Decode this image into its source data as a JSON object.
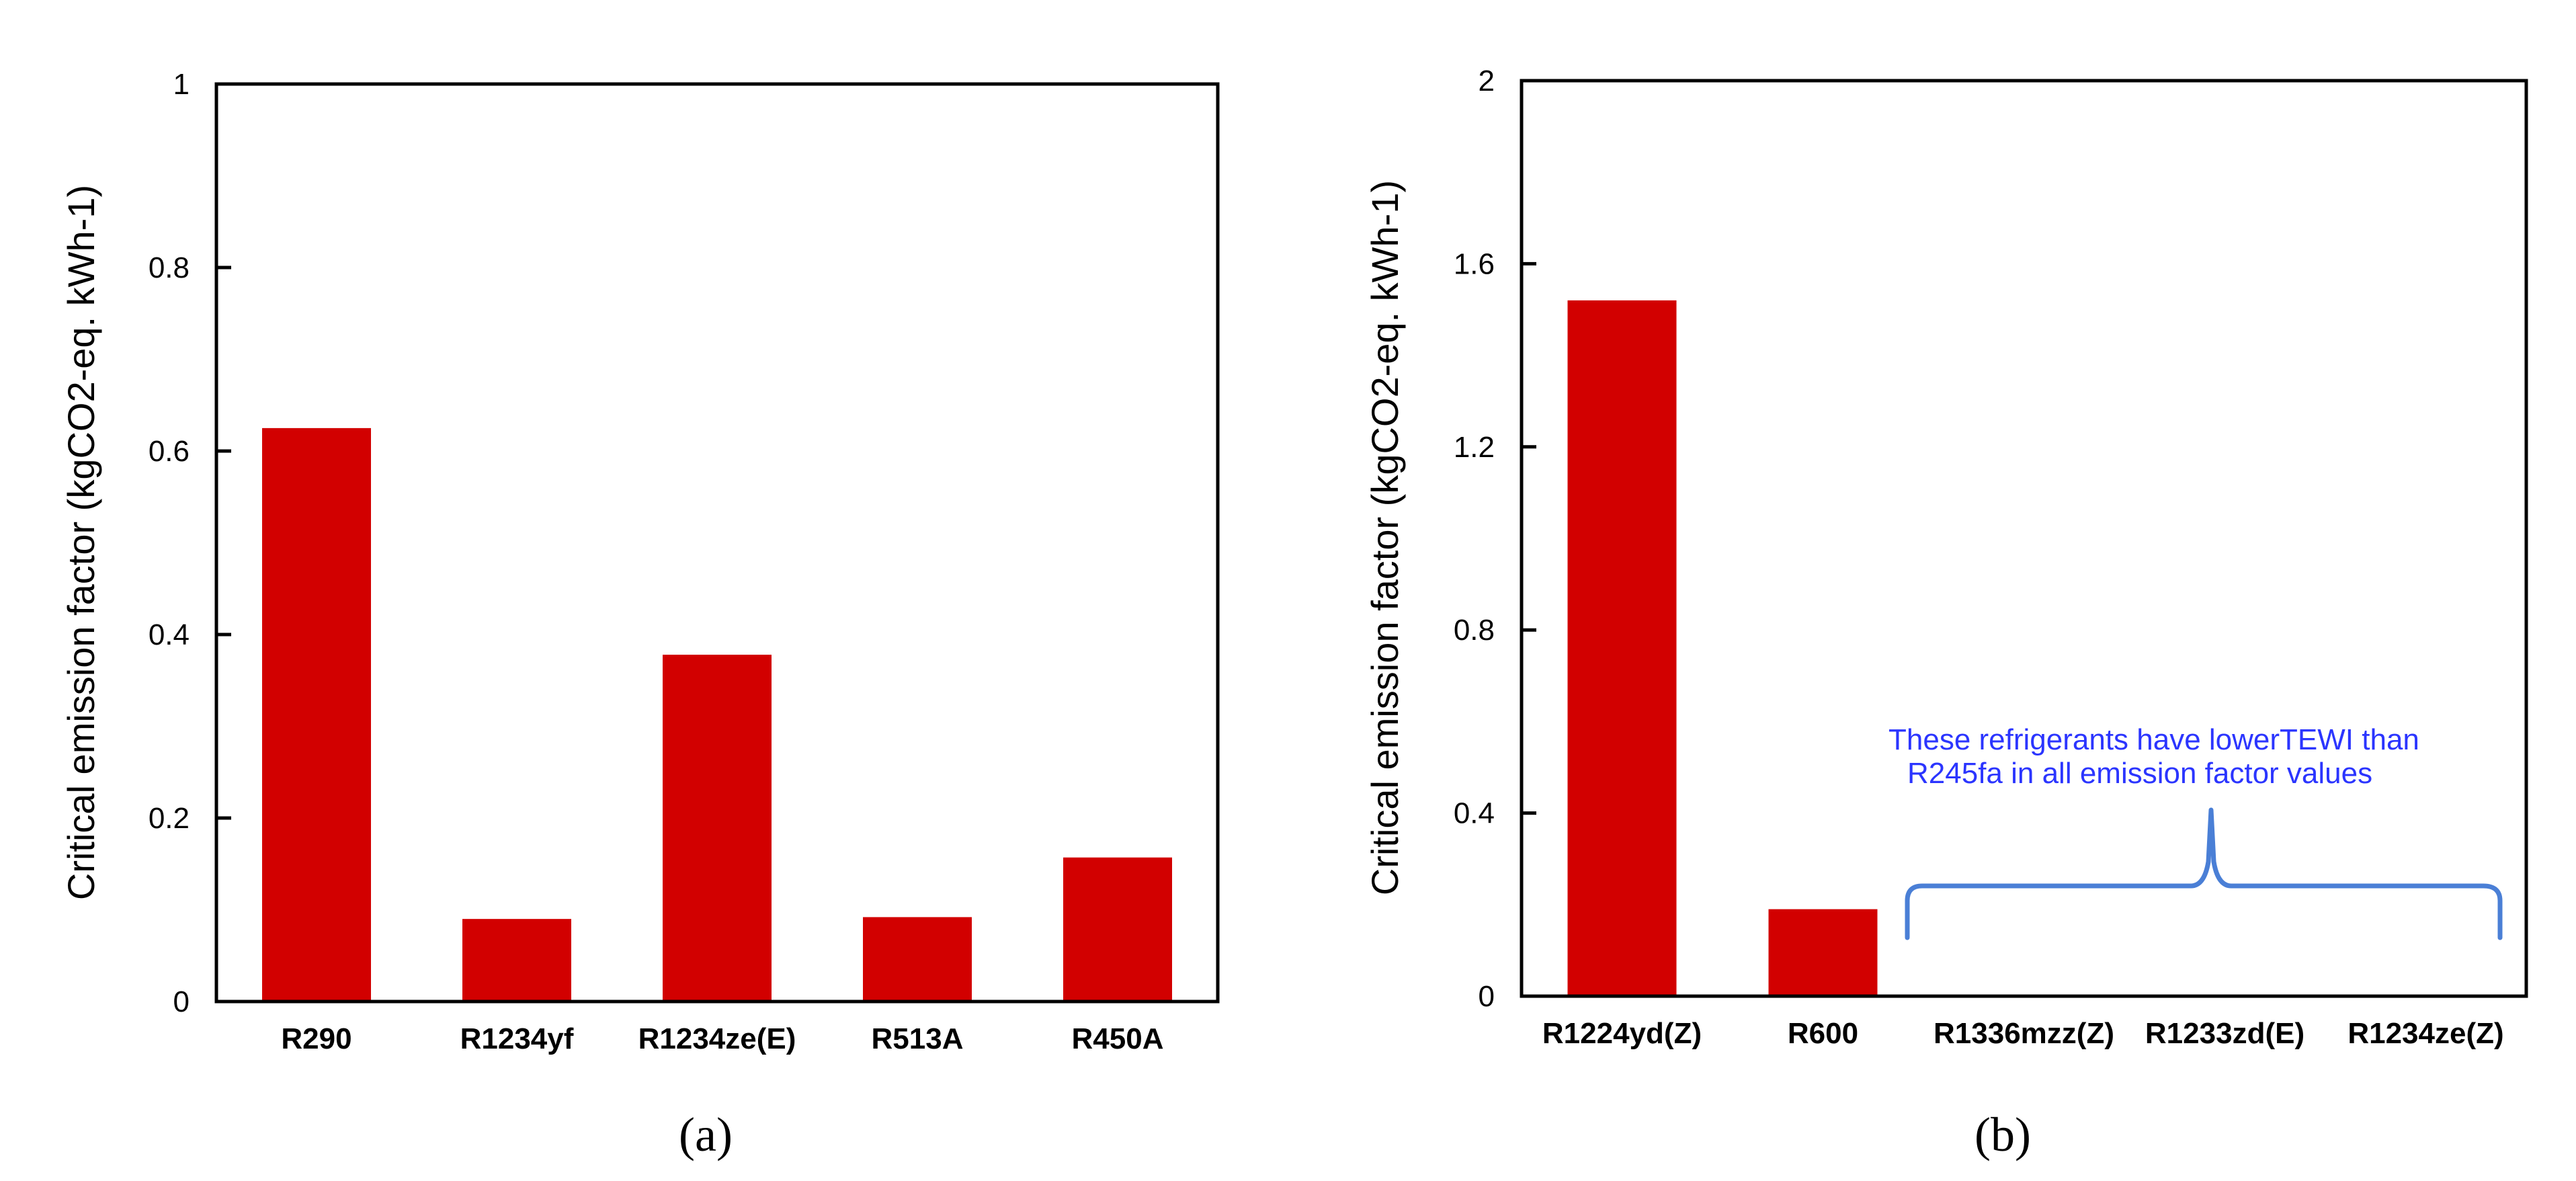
{
  "chart_data": [
    {
      "type": "bar",
      "panel_label": "(a)",
      "ylabel": "Critical emission factor (kgCO2-eq. kWh-1)",
      "ylim": [
        0,
        1
      ],
      "yticks": [
        "0",
        "0.2",
        "0.4",
        "0.6",
        "0.8",
        "1"
      ],
      "categories": [
        "R290",
        "R1234yf",
        "R1234ze(E)",
        "R513A",
        "R450A"
      ],
      "values": [
        0.625,
        0.09,
        0.378,
        0.092,
        0.157
      ],
      "bar_color": "#d20000"
    },
    {
      "type": "bar",
      "panel_label": "(b)",
      "ylabel": "Critical emission factor (kgCO2-eq. kWh-1)",
      "ylim": [
        0,
        2
      ],
      "yticks": [
        "0",
        "0.4",
        "0.8",
        "1.2",
        "1.6",
        "2"
      ],
      "categories": [
        "R1224yd(Z)",
        "R600",
        "R1336mzz(Z)",
        "R1233zd(E)",
        "R1234ze(Z)"
      ],
      "values": [
        1.52,
        0.19,
        null,
        null,
        null
      ],
      "bar_color": "#d20000",
      "annotation": {
        "lines": [
          "These refrigerants have lowerTEWI than",
          "R245fa in all emission factor values"
        ],
        "color": "#2b35ff",
        "brace_color": "#4a7fd6"
      }
    }
  ]
}
